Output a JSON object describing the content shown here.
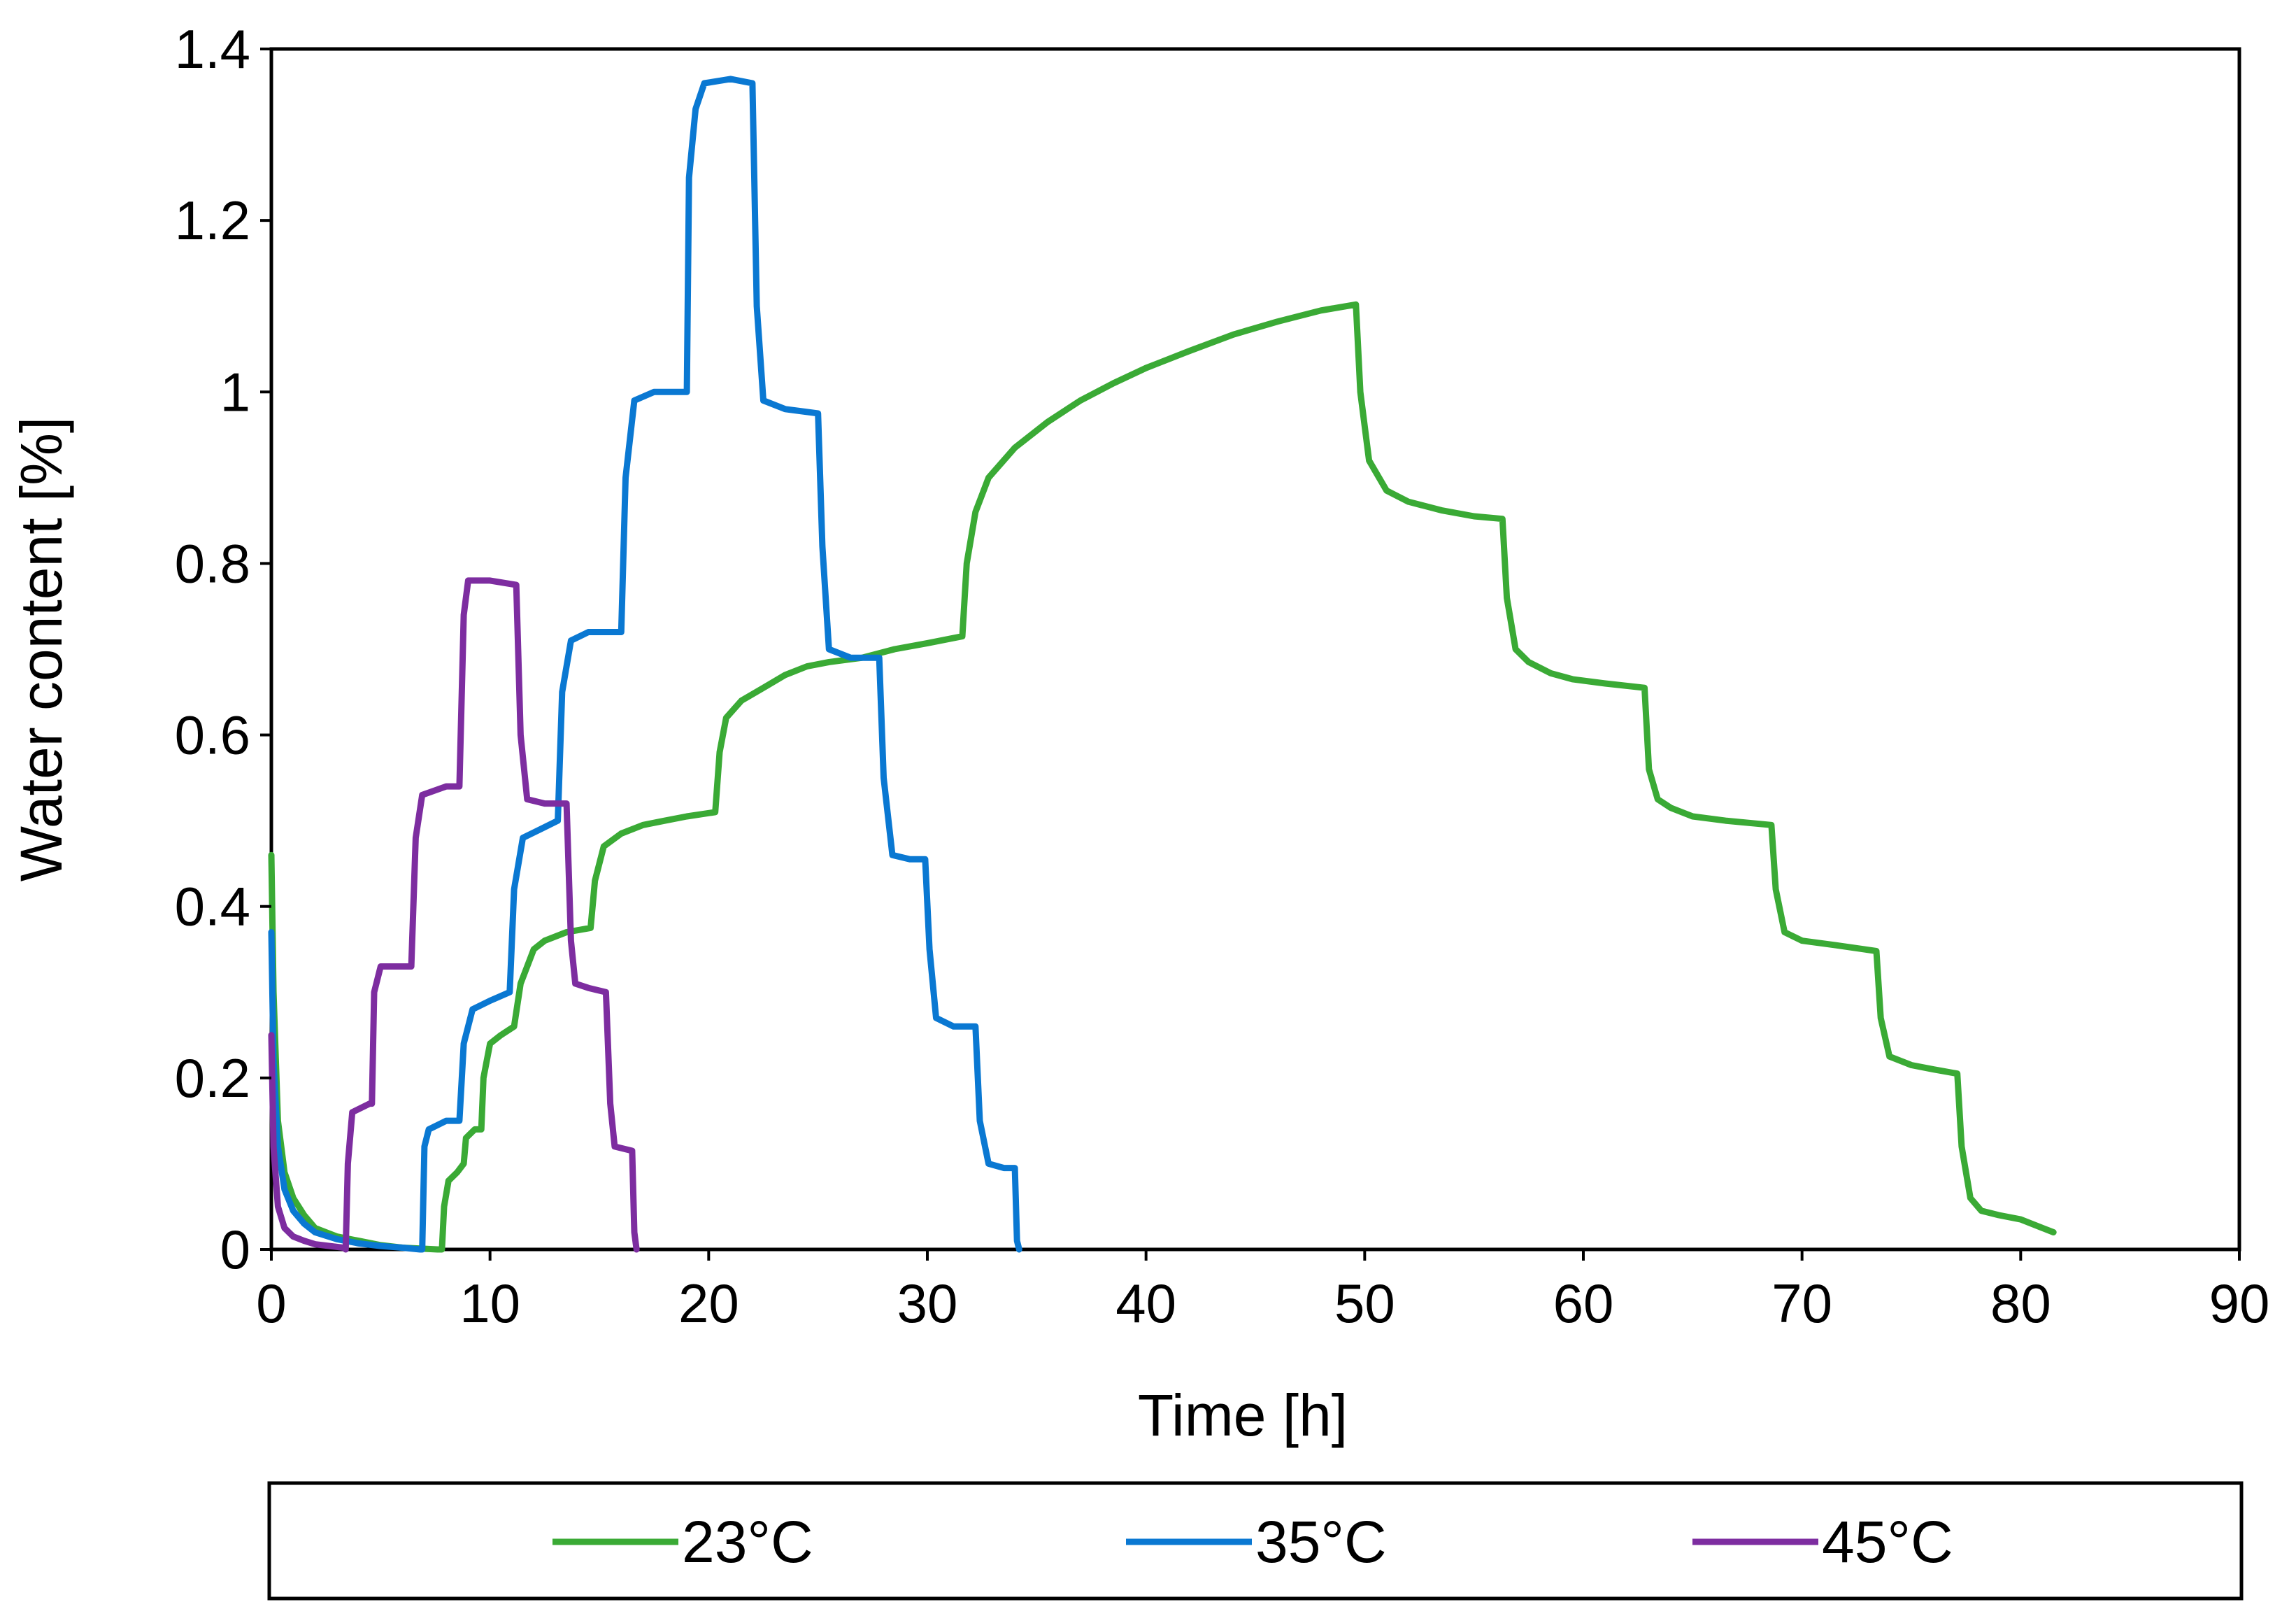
{
  "chart_data": {
    "type": "line",
    "title": "",
    "xlabel": "Time [h]",
    "ylabel": "Water content [%]",
    "xlim": [
      0,
      90
    ],
    "ylim": [
      0,
      1.4
    ],
    "x_ticks": [
      "0",
      "10",
      "20",
      "30",
      "40",
      "50",
      "60",
      "70",
      "80",
      "90"
    ],
    "y_ticks": [
      "0",
      "0.2",
      "0.4",
      "0.6",
      "0.8",
      "1",
      "1.2",
      "1.4"
    ],
    "grid": false,
    "legend_position": "bottom",
    "series": [
      {
        "name": "23°C",
        "color": "#3AAA35",
        "points": [
          [
            0,
            0.46
          ],
          [
            0.1,
            0.3
          ],
          [
            0.3,
            0.15
          ],
          [
            0.6,
            0.09
          ],
          [
            1,
            0.06
          ],
          [
            1.5,
            0.04
          ],
          [
            2,
            0.025
          ],
          [
            3,
            0.015
          ],
          [
            4,
            0.01
          ],
          [
            5,
            0.005
          ],
          [
            6,
            0.002
          ],
          [
            7.6,
            0
          ],
          [
            7.8,
            0
          ],
          [
            7.9,
            0.05
          ],
          [
            8.1,
            0.08
          ],
          [
            8.5,
            0.09
          ],
          [
            8.8,
            0.1
          ],
          [
            8.9,
            0.13
          ],
          [
            9.3,
            0.14
          ],
          [
            9.6,
            0.14
          ],
          [
            9.7,
            0.2
          ],
          [
            10,
            0.24
          ],
          [
            10.5,
            0.25
          ],
          [
            11.1,
            0.26
          ],
          [
            11.4,
            0.31
          ],
          [
            12,
            0.35
          ],
          [
            12.5,
            0.36
          ],
          [
            13.5,
            0.37
          ],
          [
            14.6,
            0.375
          ],
          [
            14.8,
            0.43
          ],
          [
            15.2,
            0.47
          ],
          [
            16,
            0.485
          ],
          [
            17,
            0.495
          ],
          [
            18,
            0.5
          ],
          [
            19,
            0.505
          ],
          [
            20.3,
            0.51
          ],
          [
            20.5,
            0.58
          ],
          [
            20.8,
            0.62
          ],
          [
            21.5,
            0.64
          ],
          [
            22.5,
            0.655
          ],
          [
            23.5,
            0.67
          ],
          [
            24.5,
            0.68
          ],
          [
            25.5,
            0.685
          ],
          [
            27,
            0.69
          ],
          [
            28.5,
            0.7
          ],
          [
            30,
            0.707
          ],
          [
            31.6,
            0.715
          ],
          [
            31.8,
            0.8
          ],
          [
            32.2,
            0.86
          ],
          [
            32.8,
            0.9
          ],
          [
            34,
            0.935
          ],
          [
            35.5,
            0.965
          ],
          [
            37,
            0.99
          ],
          [
            38.5,
            1.01
          ],
          [
            40,
            1.028
          ],
          [
            42,
            1.048
          ],
          [
            44,
            1.067
          ],
          [
            46,
            1.082
          ],
          [
            48,
            1.095
          ],
          [
            49.6,
            1.102
          ],
          [
            49.8,
            1.0
          ],
          [
            50.2,
            0.92
          ],
          [
            51,
            0.885
          ],
          [
            52,
            0.872
          ],
          [
            53.5,
            0.862
          ],
          [
            55,
            0.855
          ],
          [
            56.3,
            0.852
          ],
          [
            56.5,
            0.76
          ],
          [
            56.9,
            0.7
          ],
          [
            57.5,
            0.685
          ],
          [
            58.5,
            0.672
          ],
          [
            59.5,
            0.665
          ],
          [
            61,
            0.66
          ],
          [
            62.8,
            0.655
          ],
          [
            63,
            0.56
          ],
          [
            63.4,
            0.525
          ],
          [
            64,
            0.515
          ],
          [
            65,
            0.505
          ],
          [
            66.5,
            0.5
          ],
          [
            68.6,
            0.495
          ],
          [
            68.8,
            0.42
          ],
          [
            69.2,
            0.37
          ],
          [
            70,
            0.36
          ],
          [
            71.5,
            0.355
          ],
          [
            73.4,
            0.348
          ],
          [
            73.6,
            0.27
          ],
          [
            74,
            0.225
          ],
          [
            75,
            0.215
          ],
          [
            76,
            0.21
          ],
          [
            77.1,
            0.205
          ],
          [
            77.3,
            0.12
          ],
          [
            77.7,
            0.06
          ],
          [
            78.2,
            0.045
          ],
          [
            79,
            0.04
          ],
          [
            80,
            0.035
          ],
          [
            81,
            0.025
          ],
          [
            81.5,
            0.02
          ]
        ]
      },
      {
        "name": "35°C",
        "color": "#0A78D2",
        "points": [
          [
            0,
            0.37
          ],
          [
            0.1,
            0.22
          ],
          [
            0.3,
            0.12
          ],
          [
            0.6,
            0.07
          ],
          [
            1,
            0.045
          ],
          [
            1.5,
            0.03
          ],
          [
            2,
            0.02
          ],
          [
            3,
            0.012
          ],
          [
            4,
            0.007
          ],
          [
            5,
            0.004
          ],
          [
            6,
            0.002
          ],
          [
            6.8,
            0
          ],
          [
            6.9,
            0
          ],
          [
            7,
            0.12
          ],
          [
            7.2,
            0.14
          ],
          [
            8,
            0.15
          ],
          [
            8.6,
            0.15
          ],
          [
            8.8,
            0.24
          ],
          [
            9.2,
            0.28
          ],
          [
            10,
            0.29
          ],
          [
            10.9,
            0.3
          ],
          [
            11.1,
            0.42
          ],
          [
            11.5,
            0.48
          ],
          [
            12.3,
            0.49
          ],
          [
            13.1,
            0.5
          ],
          [
            13.3,
            0.65
          ],
          [
            13.7,
            0.71
          ],
          [
            14.5,
            0.72
          ],
          [
            16,
            0.72
          ],
          [
            16.2,
            0.9
          ],
          [
            16.6,
            0.99
          ],
          [
            17.5,
            1.0
          ],
          [
            19,
            1.0
          ],
          [
            19.1,
            1.25
          ],
          [
            19.4,
            1.33
          ],
          [
            19.8,
            1.36
          ],
          [
            21,
            1.365
          ],
          [
            22,
            1.36
          ],
          [
            22.2,
            1.1
          ],
          [
            22.5,
            0.99
          ],
          [
            23.5,
            0.98
          ],
          [
            25,
            0.975
          ],
          [
            25.2,
            0.82
          ],
          [
            25.5,
            0.7
          ],
          [
            26.5,
            0.69
          ],
          [
            27.8,
            0.69
          ],
          [
            28,
            0.55
          ],
          [
            28.4,
            0.46
          ],
          [
            29.2,
            0.455
          ],
          [
            29.9,
            0.455
          ],
          [
            30.1,
            0.35
          ],
          [
            30.4,
            0.27
          ],
          [
            31.2,
            0.26
          ],
          [
            32.2,
            0.26
          ],
          [
            32.4,
            0.15
          ],
          [
            32.8,
            0.1
          ],
          [
            33.5,
            0.095
          ],
          [
            34,
            0.095
          ],
          [
            34.1,
            0.01
          ],
          [
            34.2,
            0
          ]
        ]
      },
      {
        "name": "45°C",
        "color": "#7D2DA0",
        "points": [
          [
            0,
            0.25
          ],
          [
            0.1,
            0.12
          ],
          [
            0.3,
            0.05
          ],
          [
            0.6,
            0.025
          ],
          [
            1,
            0.015
          ],
          [
            1.5,
            0.01
          ],
          [
            2,
            0.006
          ],
          [
            3.3,
            0.002
          ],
          [
            3.4,
            0
          ],
          [
            3.5,
            0.1
          ],
          [
            3.7,
            0.16
          ],
          [
            4.5,
            0.17
          ],
          [
            4.6,
            0.17
          ],
          [
            4.7,
            0.3
          ],
          [
            5,
            0.33
          ],
          [
            6,
            0.33
          ],
          [
            6.4,
            0.33
          ],
          [
            6.6,
            0.48
          ],
          [
            6.9,
            0.53
          ],
          [
            8,
            0.54
          ],
          [
            8.6,
            0.54
          ],
          [
            8.8,
            0.74
          ],
          [
            9,
            0.78
          ],
          [
            10,
            0.78
          ],
          [
            11.2,
            0.775
          ],
          [
            11.4,
            0.6
          ],
          [
            11.7,
            0.525
          ],
          [
            12.5,
            0.52
          ],
          [
            13.5,
            0.52
          ],
          [
            13.7,
            0.36
          ],
          [
            13.9,
            0.31
          ],
          [
            14.5,
            0.305
          ],
          [
            15.3,
            0.3
          ],
          [
            15.5,
            0.17
          ],
          [
            15.7,
            0.12
          ],
          [
            16.5,
            0.115
          ],
          [
            16.6,
            0.02
          ],
          [
            16.7,
            0
          ]
        ]
      }
    ]
  }
}
